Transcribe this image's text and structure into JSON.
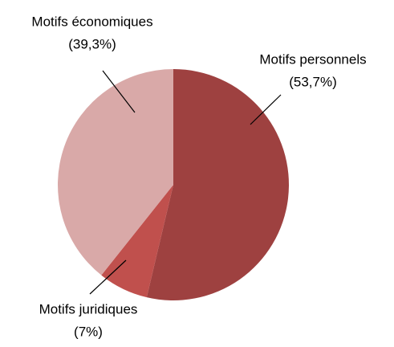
{
  "chart_data": {
    "type": "pie",
    "categories": [
      "Motifs personnels",
      "Motifs juridiques",
      "Motifs économiques"
    ],
    "values": [
      53.7,
      7,
      39.3
    ],
    "value_labels": [
      "(53,7%)",
      "(7%)",
      "(39,3%)"
    ],
    "colors": [
      "#9e4140",
      "#c0504d",
      "#d9a9a8"
    ]
  }
}
